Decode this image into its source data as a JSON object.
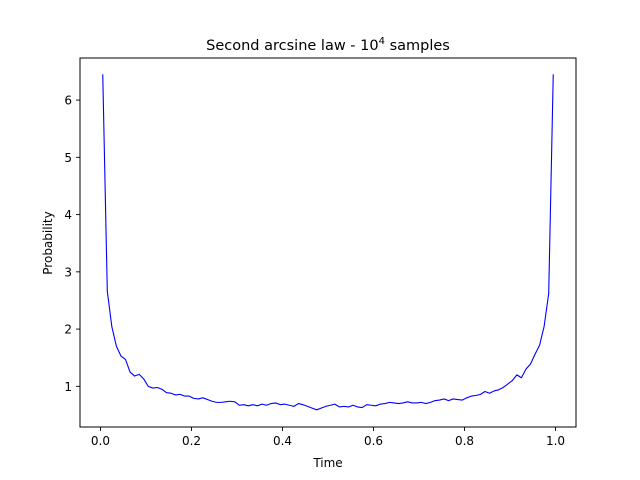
{
  "chart_data": {
    "type": "line",
    "title": "Second arcsine law - 10",
    "title_superscript": "4",
    "title_suffix": " samples",
    "xlabel": "Time",
    "ylabel": "Probability",
    "xlim": [
      -0.045,
      1.045
    ],
    "ylim": [
      0.29,
      6.735
    ],
    "xticks": [
      0.0,
      0.2,
      0.4,
      0.6,
      0.8,
      1.0
    ],
    "xtick_labels": [
      "0.0",
      "0.2",
      "0.4",
      "0.6",
      "0.8",
      "1.0"
    ],
    "yticks": [
      1,
      2,
      3,
      4,
      5,
      6
    ],
    "ytick_labels": [
      "1",
      "2",
      "3",
      "4",
      "5",
      "6"
    ],
    "grid": false,
    "legend": "none",
    "series": [
      {
        "color": "#0000ff",
        "x": [
          0.005,
          0.015,
          0.025,
          0.035,
          0.045,
          0.055,
          0.065,
          0.075,
          0.085,
          0.095,
          0.105,
          0.115,
          0.125,
          0.135,
          0.145,
          0.155,
          0.165,
          0.175,
          0.185,
          0.195,
          0.205,
          0.215,
          0.225,
          0.235,
          0.245,
          0.255,
          0.265,
          0.275,
          0.285,
          0.295,
          0.305,
          0.315,
          0.325,
          0.335,
          0.345,
          0.355,
          0.365,
          0.375,
          0.385,
          0.395,
          0.405,
          0.415,
          0.425,
          0.435,
          0.445,
          0.455,
          0.465,
          0.475,
          0.485,
          0.495,
          0.505,
          0.515,
          0.525,
          0.535,
          0.545,
          0.555,
          0.565,
          0.575,
          0.585,
          0.595,
          0.605,
          0.615,
          0.625,
          0.635,
          0.645,
          0.655,
          0.665,
          0.675,
          0.685,
          0.695,
          0.705,
          0.715,
          0.725,
          0.735,
          0.745,
          0.755,
          0.765,
          0.775,
          0.785,
          0.795,
          0.805,
          0.815,
          0.825,
          0.835,
          0.845,
          0.855,
          0.865,
          0.875,
          0.885,
          0.895,
          0.905,
          0.915,
          0.925,
          0.935,
          0.945,
          0.955,
          0.965,
          0.975,
          0.985,
          0.995
        ],
        "y": [
          6.45,
          2.66,
          2.04,
          1.7,
          1.53,
          1.47,
          1.25,
          1.18,
          1.21,
          1.13,
          1.0,
          0.97,
          0.98,
          0.95,
          0.89,
          0.88,
          0.85,
          0.86,
          0.83,
          0.83,
          0.79,
          0.78,
          0.8,
          0.77,
          0.74,
          0.72,
          0.72,
          0.73,
          0.74,
          0.73,
          0.67,
          0.68,
          0.66,
          0.68,
          0.66,
          0.69,
          0.67,
          0.7,
          0.71,
          0.68,
          0.69,
          0.67,
          0.65,
          0.7,
          0.68,
          0.65,
          0.62,
          0.59,
          0.62,
          0.65,
          0.67,
          0.69,
          0.64,
          0.65,
          0.64,
          0.67,
          0.64,
          0.63,
          0.68,
          0.67,
          0.66,
          0.69,
          0.7,
          0.72,
          0.71,
          0.7,
          0.71,
          0.73,
          0.71,
          0.71,
          0.72,
          0.7,
          0.72,
          0.75,
          0.76,
          0.78,
          0.75,
          0.78,
          0.77,
          0.76,
          0.8,
          0.83,
          0.84,
          0.86,
          0.91,
          0.88,
          0.92,
          0.94,
          0.98,
          1.04,
          1.1,
          1.2,
          1.15,
          1.3,
          1.39,
          1.56,
          1.72,
          2.05,
          2.62,
          6.45
        ]
      }
    ]
  }
}
